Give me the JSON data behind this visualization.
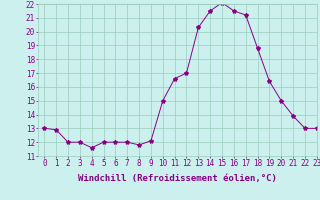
{
  "x": [
    0,
    1,
    2,
    3,
    4,
    5,
    6,
    7,
    8,
    9,
    10,
    11,
    12,
    13,
    14,
    15,
    16,
    17,
    18,
    19,
    20,
    21,
    22,
    23
  ],
  "y": [
    13.0,
    12.9,
    12.0,
    12.0,
    11.6,
    12.0,
    12.0,
    12.0,
    11.8,
    12.1,
    15.0,
    16.6,
    17.0,
    20.3,
    21.5,
    22.1,
    21.5,
    21.2,
    18.8,
    16.4,
    15.0,
    13.9,
    13.0,
    13.0
  ],
  "ylim": [
    11,
    22
  ],
  "xlim": [
    -0.5,
    23
  ],
  "yticks": [
    11,
    12,
    13,
    14,
    15,
    16,
    17,
    18,
    19,
    20,
    21,
    22
  ],
  "xticks": [
    0,
    1,
    2,
    3,
    4,
    5,
    6,
    7,
    8,
    9,
    10,
    11,
    12,
    13,
    14,
    15,
    16,
    17,
    18,
    19,
    20,
    21,
    22,
    23
  ],
  "line_color": "#880088",
  "marker": "*",
  "marker_size": 3,
  "xlabel": "Windchill (Refroidissement éolien,°C)",
  "background_color": "#ccf0ee",
  "grid_color": "#99ccbb",
  "tick_color": "#880088",
  "tick_fontsize": 5.5,
  "label_fontsize": 6.5
}
